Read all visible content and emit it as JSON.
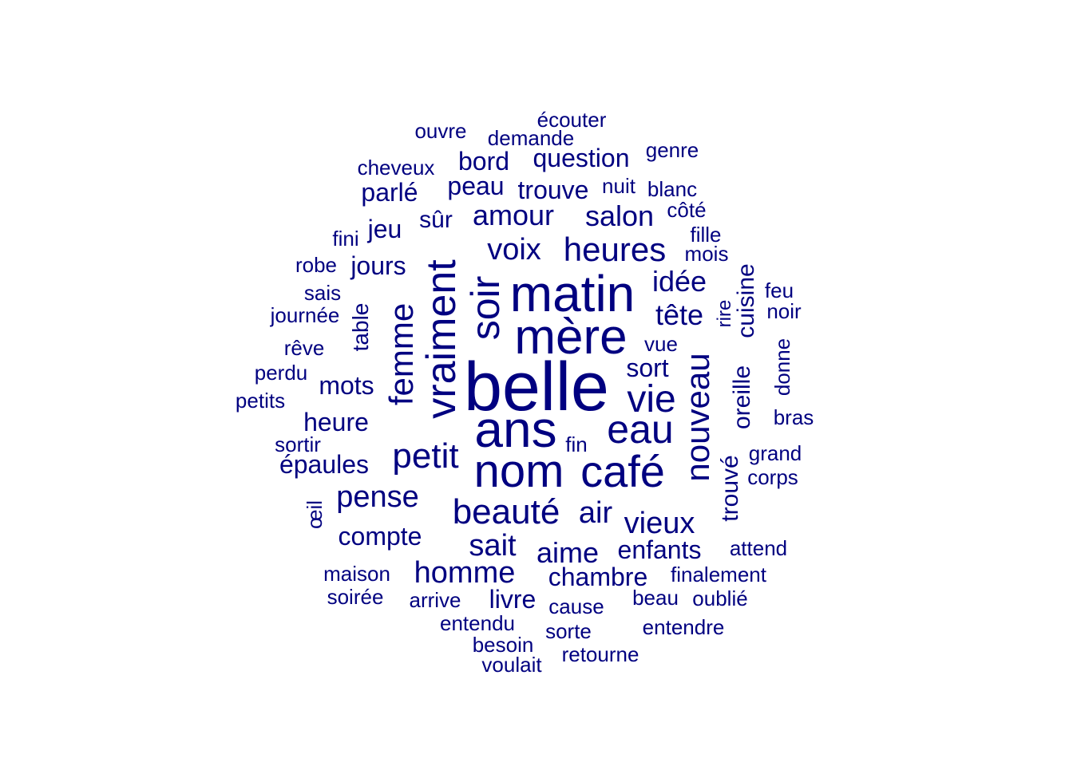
{
  "colors": {
    "words": "#000080",
    "background": "#ffffff"
  },
  "words": [
    "belle",
    "ans",
    "matin",
    "mère",
    "nom",
    "café",
    "vraiment",
    "soir",
    "eau",
    "vie",
    "nouveau",
    "petit",
    "femme",
    "beauté",
    "heures",
    "salon",
    "amour",
    "voix",
    "idée",
    "tête",
    "question",
    "bord",
    "sort",
    "mots",
    "heure",
    "pense",
    "air",
    "vieux",
    "sait",
    "aime",
    "homme",
    "chambre",
    "enfants",
    "trouvé",
    "oreille",
    "cuisine",
    "parlé",
    "jeu",
    "jours",
    "peau",
    "trouve",
    "sûr",
    "épaules",
    "compte",
    "livre",
    "écouter",
    "ouvre",
    "demande",
    "genre",
    "cheveux",
    "nuit",
    "blanc",
    "côté",
    "fille",
    "fini",
    "mois",
    "robe",
    "sais",
    "feu",
    "rire",
    "journée",
    "noir",
    "table",
    "rêve",
    "vue",
    "perdu",
    "donne",
    "petits",
    "bras",
    "sortir",
    "fin",
    "grand",
    "corps",
    "œil",
    "attend",
    "maison",
    "finalement",
    "soirée",
    "arrive",
    "cause",
    "beau",
    "oublié",
    "entendu",
    "sorte",
    "entendre",
    "besoin",
    "retourne",
    "voulait"
  ]
}
